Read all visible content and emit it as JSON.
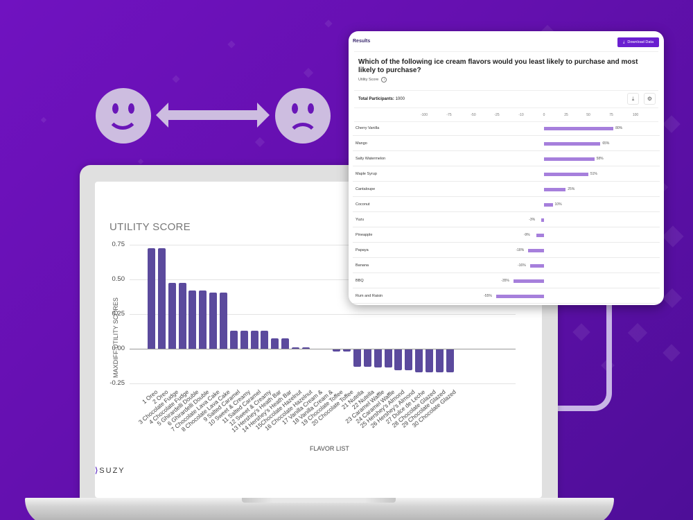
{
  "background": {
    "gradient_start": "#7012c0",
    "gradient_end": "#4e0e98"
  },
  "decorations": {
    "left_icon": "smiley-face-icon",
    "middle_icon": "double-arrow-icon",
    "right_icon": "sad-face-icon",
    "icon_color": "#cdbde0"
  },
  "laptop_screen": {
    "brand": "SUZY",
    "chart_title": "UTILITY SCORE"
  },
  "results_card": {
    "header": "Results",
    "download_button": "Download Data",
    "question": "Which of the following ice cream flavors would you least likely to purchase and most likely to purchase?",
    "subtitle": "Utility Score",
    "participants_label": "Total Participants:",
    "participants_value": "1000",
    "axis_ticks": [
      "-100",
      "-75",
      "-50",
      "-25",
      "-10",
      "0",
      "25",
      "50",
      "75",
      "100"
    ],
    "bar_color": "#a67fdc",
    "button_color": "#6a1fd0"
  },
  "chart_data": [
    {
      "type": "bar",
      "title": "UTILITY SCORE",
      "xlabel": "FLAVOR LIST",
      "ylabel": "MAXDIFF UTILITY SCORES",
      "ylim": [
        -0.25,
        0.75
      ],
      "yticks": [
        "0.75",
        "0.50",
        "0.25",
        "0.00",
        "-0.25"
      ],
      "grid": true,
      "bar_color": "#5b4a9d",
      "categories": [
        "1 Oreo",
        "2 Oreo",
        "3 Chocolate Fudge",
        "4 Chocolate Fudge",
        "5 Ghirardelli Double",
        "6 Ghirardelli Double",
        "7 Chocolate Lava Cake",
        "8 Chocolate Lava Cake",
        "9 Salted Caramel",
        "10 Sweet & Creamy",
        "11 Salted Caramel",
        "12 Sweet & Creamy",
        "13 Hershey's Heath Bar",
        "14 Hershey's Heath Bar",
        "15Chocolate Hazelnut",
        "16 Chocolate Hazelnut",
        "17 Vanilla Cream &",
        "18 Vanilla Cream &",
        "19 Chocolate Toffee",
        "20 Chocolate Toffee",
        "21 Nutella",
        "22 Nutella",
        "23 Caramel Waffle",
        "24 Caramel Waffle",
        "25 Hershey's Almond",
        "26 Hershey's Almond",
        "27 Dulce de Leche",
        "28 Chocolate Glazed",
        "29 Chocolate Glazed",
        "30 Chocolate Glazed"
      ],
      "values": [
        0.725,
        0.725,
        0.475,
        0.475,
        0.42,
        0.42,
        0.405,
        0.405,
        0.13,
        0.13,
        0.13,
        0.13,
        0.075,
        0.075,
        0.01,
        0.01,
        0.0,
        0.0,
        -0.015,
        -0.015,
        -0.125,
        -0.125,
        -0.13,
        -0.13,
        -0.15,
        -0.15,
        -0.165,
        -0.165,
        -0.165,
        -0.165
      ]
    },
    {
      "type": "bar",
      "orientation": "horizontal",
      "title": "Utility Score",
      "xlim": [
        -100,
        100
      ],
      "xticks": [
        "-100",
        "-75",
        "-50",
        "-25",
        "-10",
        "0",
        "25",
        "50",
        "75",
        "100"
      ],
      "categories": [
        "Cherry Vanilla",
        "Mango",
        "Salty Watermelon",
        "Maple Syrup",
        "Cantaloupe",
        "Coconut",
        "Yuzu",
        "Pineapple",
        "Papaya",
        "Banana",
        "BBQ",
        "Rum and Raisin"
      ],
      "values": [
        80,
        65,
        58,
        51,
        25,
        10,
        -3,
        -9,
        -18,
        -16,
        -35,
        -55
      ],
      "value_labels": [
        "80%",
        "65%",
        "58%",
        "51%",
        "25%",
        "10%",
        "-3%",
        "-9%",
        "-18%",
        "-16%",
        "-35%",
        "-55%"
      ]
    }
  ]
}
